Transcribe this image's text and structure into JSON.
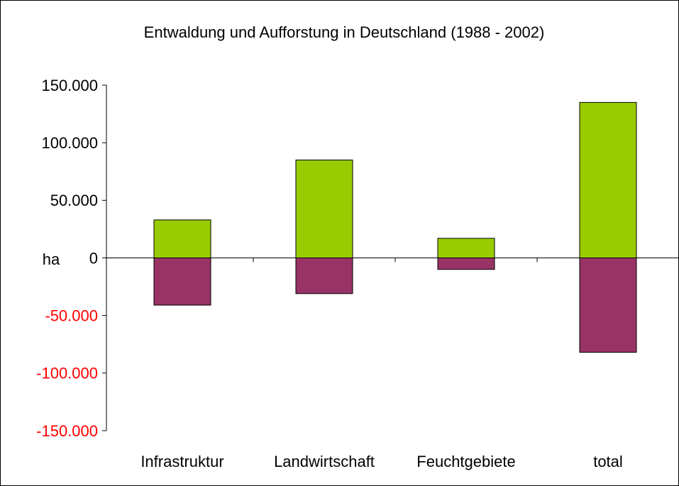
{
  "chart_data": {
    "type": "bar",
    "stacked": true,
    "title": "Entwaldung und Aufforstung in Deutschland (1988 - 2002)",
    "y_unit": "ha",
    "categories": [
      "Infrastruktur",
      "Landwirtschaft",
      "Feuchtgebiete",
      "total"
    ],
    "series": [
      {
        "color": "#99cc00",
        "values": [
          33000,
          85000,
          17000,
          135000
        ]
      },
      {
        "color": "#993366",
        "values": [
          -41000,
          -31000,
          -10000,
          -82000
        ]
      }
    ],
    "ylim": [
      -150000,
      150000
    ],
    "yticks": [
      {
        "value": -150000,
        "label": "-150.000"
      },
      {
        "value": -100000,
        "label": "-100.000"
      },
      {
        "value": -50000,
        "label": "-50.000"
      },
      0,
      {
        "value": 50000,
        "label": "50.000"
      },
      {
        "value": 100000,
        "label": "100.000"
      },
      {
        "value": 150000,
        "label": "150.000"
      }
    ],
    "negative_tick_color": "#ff0000",
    "grid": false
  }
}
